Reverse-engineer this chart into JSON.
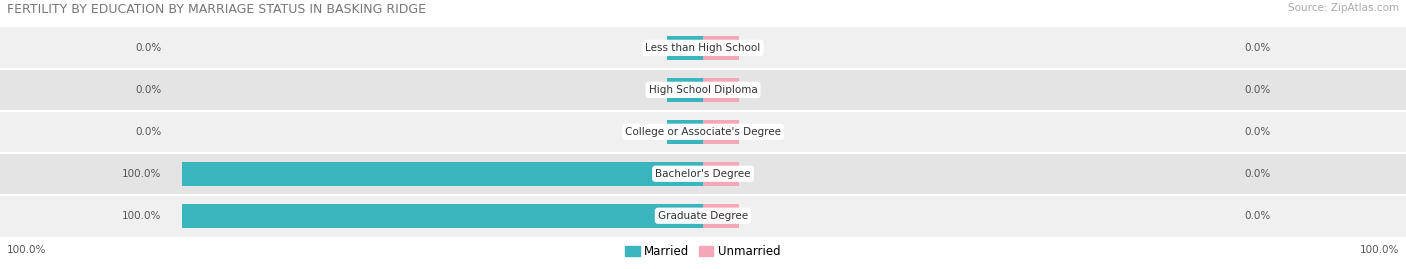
{
  "title": "FERTILITY BY EDUCATION BY MARRIAGE STATUS IN BASKING RIDGE",
  "source": "Source: ZipAtlas.com",
  "categories": [
    "Less than High School",
    "High School Diploma",
    "College or Associate's Degree",
    "Bachelor's Degree",
    "Graduate Degree"
  ],
  "married": [
    0.0,
    0.0,
    0.0,
    100.0,
    100.0
  ],
  "unmarried": [
    0.0,
    0.0,
    0.0,
    0.0,
    0.0
  ],
  "married_color": "#3ab5be",
  "unmarried_color": "#f4a7b9",
  "row_bg_colors": [
    "#f0f0f0",
    "#e4e4e4"
  ],
  "stub_size": 7.0,
  "axis_range": 100.0,
  "figsize": [
    14.06,
    2.69
  ],
  "dpi": 100,
  "title_fontsize": 9.0,
  "label_fontsize": 7.5,
  "source_fontsize": 7.5
}
